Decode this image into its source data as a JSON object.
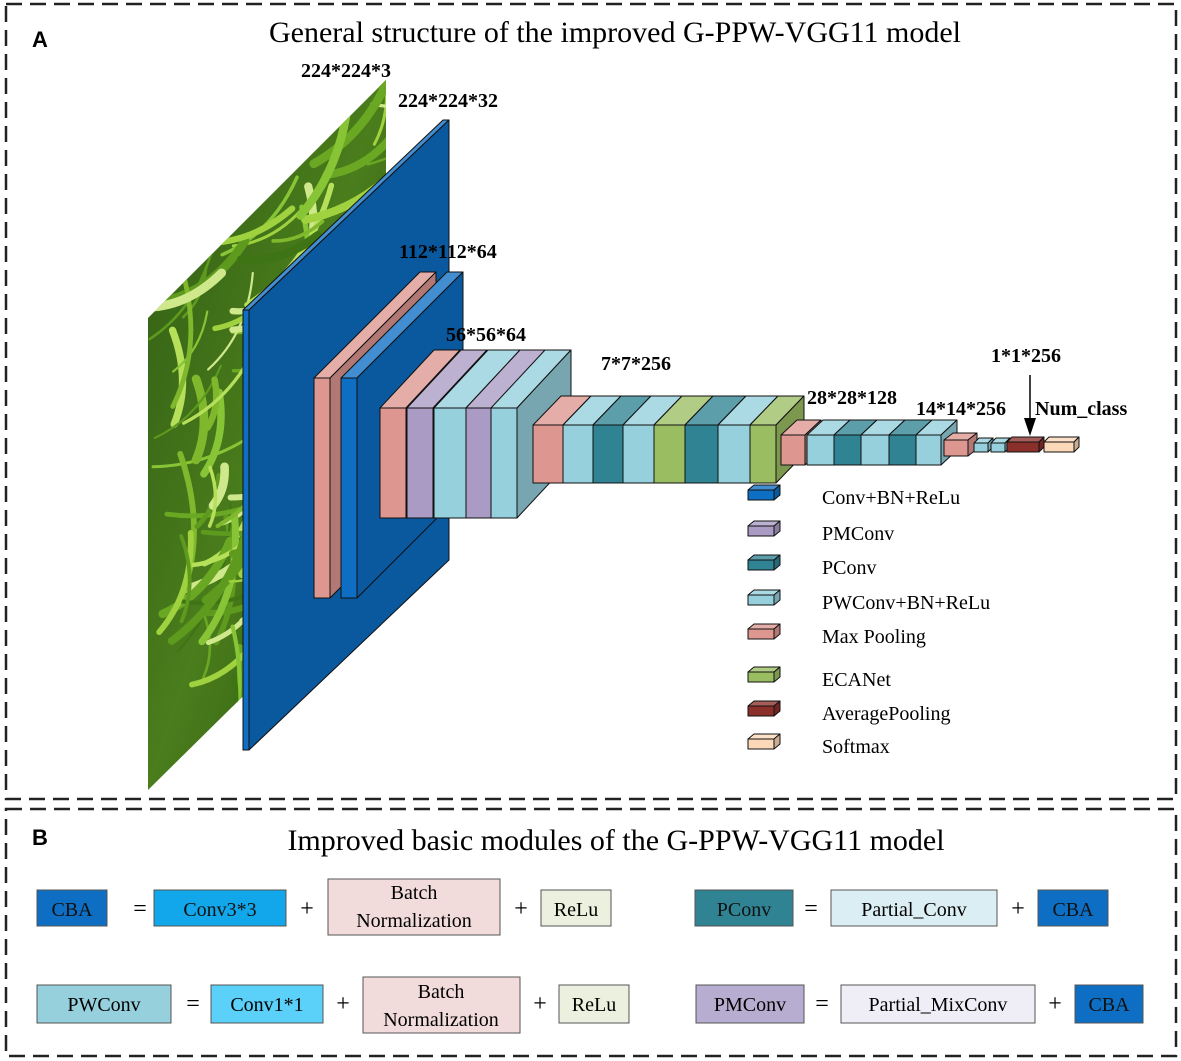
{
  "panel_a": {
    "letter": "A",
    "title": "General structure of the improved G-PPW-VGG11 model",
    "dims": {
      "input": "224*224*3",
      "conv1": "224*224*32",
      "stage2": "112*112*64",
      "stage3": "56*56*64",
      "stage4": "7*7*256",
      "stage5": "28*28*128",
      "stage6": "14*14*256",
      "pool": "1*1*256",
      "output": "Num_class"
    },
    "legend": [
      {
        "label": "Conv+BN+ReLu",
        "color": "#0d6ec4"
      },
      {
        "label": "PMConv",
        "color": "#a99bc4"
      },
      {
        "label": "PConv",
        "color": "#2f8393"
      },
      {
        "label": "PWConv+BN+ReLu",
        "color": "#95d0dc"
      },
      {
        "label": "Max Pooling",
        "color": "#de9690"
      },
      {
        "label": "ECANet",
        "color": "#9bbd62"
      },
      {
        "label": "AveragePooling",
        "color": "#8b2f2b"
      },
      {
        "label": "Softmax",
        "color": "#fbd9b8"
      }
    ]
  },
  "panel_b": {
    "letter": "B",
    "title": "Improved basic modules of the G-PPW-VGG11 model",
    "equations": [
      {
        "lhs": "CBA",
        "terms": [
          "Conv3*3",
          "Batch Normalization",
          "ReLu"
        ]
      },
      {
        "lhs": "PConv",
        "terms": [
          "Partial_Conv",
          "CBA"
        ]
      },
      {
        "lhs": "PWConv",
        "terms": [
          "Conv1*1",
          "Batch Normalization",
          "ReLu"
        ]
      },
      {
        "lhs": "PMConv",
        "terms": [
          "Partial_MixConv",
          "CBA"
        ]
      }
    ],
    "eq_sign": "=",
    "plus_sign": "+",
    "batch_norm_line1": "Batch",
    "batch_norm_line2": "Normalization"
  }
}
